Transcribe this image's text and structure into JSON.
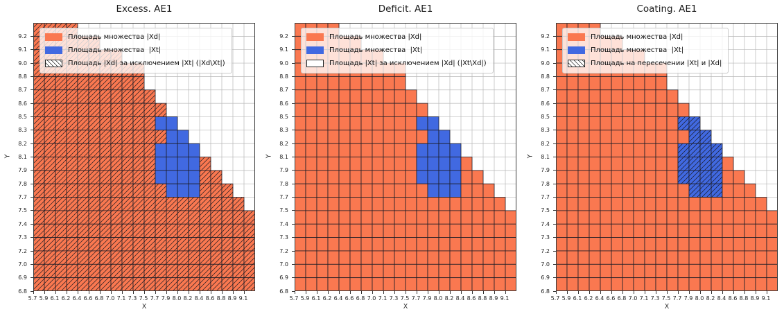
{
  "chart_data": {
    "type": "grid-heatmap",
    "description": "Three identical 20x20 cell grids comparing sets |Xd| (orange) and |Xt| (blue); hatching marks the set named in each third legend entry",
    "cols": 20,
    "rows": 20,
    "x_ticks": [
      "5.7",
      "5.9",
      "6.1",
      "6.2",
      "6.4",
      "6.6",
      "6.8",
      "7.0",
      "7.1",
      "7.3",
      "7.5",
      "7.7",
      "7.9",
      "8.0",
      "8.2",
      "8.4",
      "8.6",
      "8.8",
      "8.9",
      "9.1"
    ],
    "y_ticks": [
      "9.2",
      "9.1",
      "9.0",
      "8.8",
      "8.7",
      "8.6",
      "8.5",
      "8.3",
      "8.2",
      "8.1",
      "7.9",
      "7.8",
      "7.7",
      "7.5",
      "7.4",
      "7.3",
      "7.2",
      "7.0",
      "6.9",
      "6.8"
    ],
    "xlabel": "X",
    "ylabel": "Y",
    "orange_color": "#FA7850",
    "blue_color": "#4169E1",
    "orange_last_col_per_row": [
      3,
      5,
      7,
      9,
      9,
      10,
      11,
      12,
      13,
      14,
      15,
      16,
      17,
      18,
      19,
      19,
      19,
      19,
      19,
      19
    ],
    "blue_cells_col_range_per_row": {
      "7": [
        11,
        12
      ],
      "8": [
        12,
        13
      ],
      "9": [
        11,
        14
      ],
      "10": [
        11,
        14
      ],
      "11": [
        11,
        14
      ],
      "12": [
        12,
        14
      ]
    },
    "plots": [
      {
        "title": "Excess. AE1",
        "hatch": "orange",
        "legend": [
          {
            "swatch": "orange",
            "label": "Площадь множества |Xd|"
          },
          {
            "swatch": "blue",
            "label": "Площадь множества  |Xt|"
          },
          {
            "swatch": "hatch",
            "label": "Площадь |Xd| за исключением |Xt| (|Xd\\Xt|)"
          }
        ]
      },
      {
        "title": "Deficit. AE1",
        "hatch": "none",
        "legend": [
          {
            "swatch": "orange",
            "label": "Площадь множества |Xd|"
          },
          {
            "swatch": "blue",
            "label": "Площадь множества  |Xt|"
          },
          {
            "swatch": "empty",
            "label": "Площадь |Xt| за исключением |Xd| (|Xt\\Xd|)"
          }
        ]
      },
      {
        "title": "Coating. AE1",
        "hatch": "blue",
        "legend": [
          {
            "swatch": "orange",
            "label": "Площадь множества |Xd|"
          },
          {
            "swatch": "blue",
            "label": "Площадь множества  |Xt|"
          },
          {
            "swatch": "hatch",
            "label": "Площадь на пересечении |Xt| и |Xd|"
          }
        ]
      }
    ]
  }
}
